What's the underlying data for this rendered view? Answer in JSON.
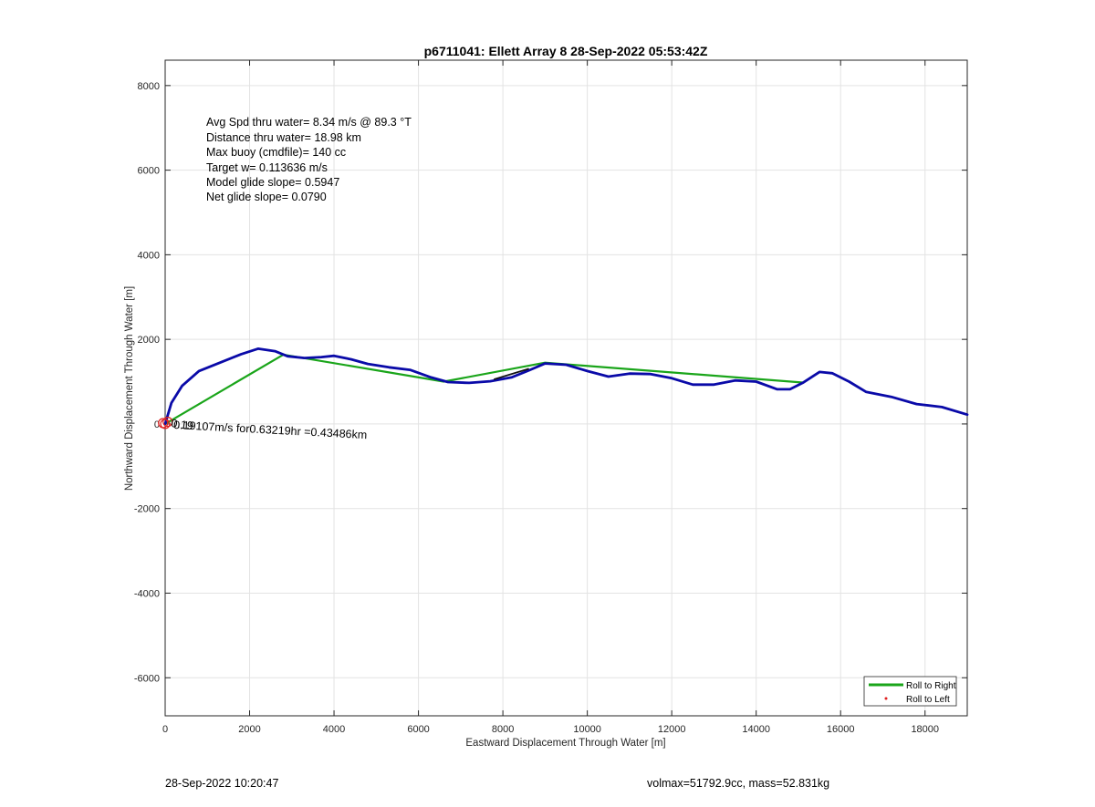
{
  "chart_data": {
    "type": "line",
    "title": "p6711041: Ellett Array 8 28-Sep-2022 05:53:42Z",
    "xlabel": "Eastward Displacement Through Water [m]",
    "ylabel": "Northward Displacement Through Water [m]",
    "xlim": [
      0,
      19000
    ],
    "ylim": [
      -6900,
      8600
    ],
    "xticks": [
      0,
      2000,
      4000,
      6000,
      8000,
      10000,
      12000,
      14000,
      16000,
      18000
    ],
    "yticks": [
      -6000,
      -4000,
      -2000,
      0,
      2000,
      4000,
      6000,
      8000
    ],
    "grid": true,
    "legend_position": "bottom-right",
    "series": [
      {
        "name": "",
        "color": "#0a0aa8",
        "style": "thick-line",
        "points": [
          [
            0,
            0
          ],
          [
            150,
            500
          ],
          [
            400,
            900
          ],
          [
            800,
            1250
          ],
          [
            1300,
            1450
          ],
          [
            1800,
            1650
          ],
          [
            2200,
            1780
          ],
          [
            2600,
            1720
          ],
          [
            2900,
            1600
          ],
          [
            3300,
            1560
          ],
          [
            3700,
            1580
          ],
          [
            4000,
            1610
          ],
          [
            4400,
            1530
          ],
          [
            4800,
            1420
          ],
          [
            5300,
            1340
          ],
          [
            5800,
            1280
          ],
          [
            6300,
            1100
          ],
          [
            6700,
            990
          ],
          [
            7200,
            970
          ],
          [
            7700,
            1010
          ],
          [
            8200,
            1100
          ],
          [
            8600,
            1260
          ],
          [
            9000,
            1430
          ],
          [
            9500,
            1400
          ],
          [
            10000,
            1250
          ],
          [
            10500,
            1120
          ],
          [
            11000,
            1190
          ],
          [
            11500,
            1180
          ],
          [
            12000,
            1080
          ],
          [
            12500,
            930
          ],
          [
            13000,
            930
          ],
          [
            13500,
            1030
          ],
          [
            14000,
            1000
          ],
          [
            14500,
            820
          ],
          [
            14800,
            820
          ],
          [
            15100,
            970
          ],
          [
            15500,
            1230
          ],
          [
            15800,
            1200
          ],
          [
            16200,
            1000
          ],
          [
            16600,
            760
          ],
          [
            17200,
            640
          ],
          [
            17800,
            470
          ],
          [
            18400,
            400
          ],
          [
            19000,
            220
          ]
        ]
      },
      {
        "name": "Roll to Right",
        "color": "#1aa51a",
        "style": "line",
        "points": [
          [
            0,
            0
          ],
          [
            2800,
            1640
          ],
          [
            6600,
            1000
          ],
          [
            9000,
            1450
          ],
          [
            15100,
            980
          ]
        ]
      },
      {
        "name": "",
        "color": "#111111",
        "style": "short-segment",
        "points": [
          [
            7800,
            1060
          ],
          [
            8600,
            1300
          ]
        ]
      },
      {
        "name": "Roll to Left",
        "color": "#e02020",
        "style": "dots",
        "points": [
          [
            0,
            0
          ],
          [
            60,
            50
          ],
          [
            -50,
            20
          ]
        ]
      }
    ],
    "annotations": [
      "Avg Spd thru water=  8.34 m/s @  89.3 °T",
      "Distance thru water= 18.98 km",
      "Max buoy (cmdfile)= 140 cc",
      "Target w= 0.113636 m/s",
      "Model glide slope= 0.5947",
      "Net glide slope= 0.0790"
    ],
    "current_label": "0.19107m/s for0.63219hr =0.43486km",
    "current_overlap_label": "0.19"
  },
  "footer": {
    "left": "28-Sep-2022 10:20:47",
    "right": "volmax=51792.9cc, mass=52.831kg"
  }
}
